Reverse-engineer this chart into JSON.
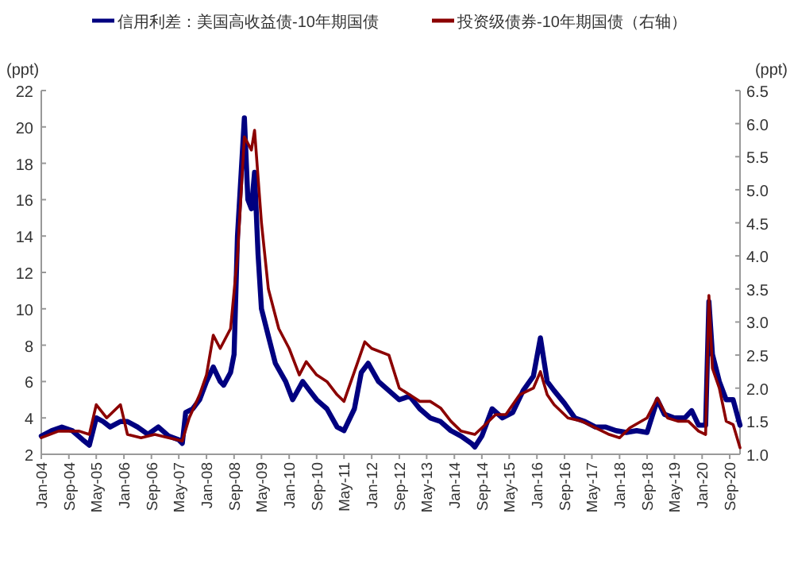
{
  "chart_data": {
    "type": "line",
    "ylabel": "(ppt)",
    "y2label": "(ppt)",
    "legend": "top",
    "grid": false,
    "line_style": "solid",
    "xlim": [
      "2004-01",
      "2020-12"
    ],
    "xticks": [
      {
        "value": "2004-01",
        "label": "Jan-04"
      },
      {
        "value": "2004-09",
        "label": "Sep-04"
      },
      {
        "value": "2005-05",
        "label": "May-05"
      },
      {
        "value": "2006-01",
        "label": "Jan-06"
      },
      {
        "value": "2006-09",
        "label": "Sep-06"
      },
      {
        "value": "2007-05",
        "label": "May-07"
      },
      {
        "value": "2008-01",
        "label": "Jan-08"
      },
      {
        "value": "2008-09",
        "label": "Sep-08"
      },
      {
        "value": "2009-05",
        "label": "May-09"
      },
      {
        "value": "2010-01",
        "label": "Jan-10"
      },
      {
        "value": "2010-09",
        "label": "Sep-10"
      },
      {
        "value": "2011-05",
        "label": "May-11"
      },
      {
        "value": "2012-01",
        "label": "Jan-12"
      },
      {
        "value": "2012-09",
        "label": "Sep-12"
      },
      {
        "value": "2013-05",
        "label": "May-13"
      },
      {
        "value": "2014-01",
        "label": "Jan-14"
      },
      {
        "value": "2014-09",
        "label": "Sep-14"
      },
      {
        "value": "2015-05",
        "label": "May-15"
      },
      {
        "value": "2016-01",
        "label": "Jan-16"
      },
      {
        "value": "2016-09",
        "label": "Sep-16"
      },
      {
        "value": "2017-05",
        "label": "May-17"
      },
      {
        "value": "2018-01",
        "label": "Jan-18"
      },
      {
        "value": "2018-09",
        "label": "Sep-18"
      },
      {
        "value": "2019-05",
        "label": "May-19"
      },
      {
        "value": "2020-01",
        "label": "Jan-20"
      },
      {
        "value": "2020-09",
        "label": "Sep-20"
      }
    ],
    "ylim": [
      2,
      22
    ],
    "yticks": [
      2,
      4,
      6,
      8,
      10,
      12,
      14,
      16,
      18,
      20,
      22
    ],
    "y2lim": [
      1.0,
      6.5
    ],
    "y2ticks": [
      {
        "value": 1,
        "label": "1.0"
      },
      {
        "value": 1.5,
        "label": "1.5"
      },
      {
        "value": 2,
        "label": "2.0"
      },
      {
        "value": 2.5,
        "label": "2.5"
      },
      {
        "value": 3,
        "label": "3.0"
      },
      {
        "value": 3.5,
        "label": "3.5"
      },
      {
        "value": 4,
        "label": "4.0"
      },
      {
        "value": 4.5,
        "label": "4.5"
      },
      {
        "value": 5,
        "label": "5.0"
      },
      {
        "value": 5.5,
        "label": "5.5"
      },
      {
        "value": 6,
        "label": "6.0"
      },
      {
        "value": 6.5,
        "label": "6.5"
      }
    ],
    "series": [
      {
        "name": "信用利差：美国高收益债-10年期国债",
        "color": "#000080",
        "x": [
          "2004-01",
          "2004-04",
          "2004-07",
          "2004-10",
          "2005-01",
          "2005-03",
          "2005-05",
          "2005-07",
          "2005-09",
          "2005-12",
          "2006-02",
          "2006-05",
          "2006-08",
          "2006-11",
          "2007-02",
          "2007-05",
          "2007-06",
          "2007-07",
          "2007-09",
          "2007-11",
          "2008-01",
          "2008-03",
          "2008-05",
          "2008-06",
          "2008-08",
          "2008-09",
          "2008-10",
          "2008-12",
          "2009-01",
          "2009-02",
          "2009-03",
          "2009-04",
          "2009-05",
          "2009-07",
          "2009-09",
          "2009-12",
          "2010-02",
          "2010-05",
          "2010-07",
          "2010-09",
          "2010-12",
          "2011-03",
          "2011-05",
          "2011-08",
          "2011-10",
          "2011-12",
          "2012-03",
          "2012-06",
          "2012-09",
          "2012-12",
          "2013-03",
          "2013-06",
          "2013-09",
          "2013-12",
          "2014-03",
          "2014-06",
          "2014-07",
          "2014-09",
          "2014-12",
          "2015-03",
          "2015-06",
          "2015-09",
          "2015-12",
          "2016-02",
          "2016-04",
          "2016-06",
          "2016-09",
          "2016-12",
          "2017-03",
          "2017-06",
          "2017-09",
          "2017-12",
          "2018-03",
          "2018-06",
          "2018-09",
          "2018-12",
          "2019-02",
          "2019-05",
          "2019-08",
          "2019-10",
          "2019-12",
          "2020-02",
          "2020-03",
          "2020-04",
          "2020-06",
          "2020-08",
          "2020-10",
          "2020-12"
        ],
        "values": [
          3.0,
          3.3,
          3.5,
          3.3,
          2.8,
          2.5,
          4.0,
          3.8,
          3.5,
          3.8,
          3.8,
          3.5,
          3.1,
          3.5,
          3.0,
          2.8,
          2.6,
          4.3,
          4.5,
          5.0,
          6.0,
          6.8,
          6.0,
          5.8,
          6.5,
          7.5,
          14,
          20.5,
          16,
          15.5,
          17.5,
          13,
          10,
          8.5,
          7.0,
          6.0,
          5.0,
          6.0,
          5.5,
          5.0,
          4.5,
          3.5,
          3.3,
          4.5,
          6.5,
          7.0,
          6.0,
          5.5,
          5.0,
          5.2,
          4.5,
          4.0,
          3.8,
          3.3,
          3.0,
          2.6,
          2.4,
          3.0,
          4.5,
          4.0,
          4.3,
          5.5,
          6.3,
          8.4,
          6.0,
          5.5,
          4.8,
          4.0,
          3.8,
          3.5,
          3.5,
          3.3,
          3.2,
          3.3,
          3.2,
          5.0,
          4.2,
          4.0,
          4.0,
          4.4,
          3.6,
          3.6,
          10.4,
          7.5,
          6.0,
          5.0,
          5.0,
          3.6
        ]
      },
      {
        "name": "投资级债券-10年期国债（右轴）",
        "color": "#8b0000",
        "axis": "y2",
        "x": [
          "2004-01",
          "2004-06",
          "2004-12",
          "2005-03",
          "2005-05",
          "2005-08",
          "2005-12",
          "2006-02",
          "2006-06",
          "2006-10",
          "2007-02",
          "2007-06",
          "2007-08",
          "2007-11",
          "2008-01",
          "2008-03",
          "2008-05",
          "2008-08",
          "2008-10",
          "2008-12",
          "2009-02",
          "2009-03",
          "2009-05",
          "2009-07",
          "2009-10",
          "2010-01",
          "2010-04",
          "2010-06",
          "2010-09",
          "2010-12",
          "2011-03",
          "2011-05",
          "2011-09",
          "2011-11",
          "2012-01",
          "2012-06",
          "2012-09",
          "2012-12",
          "2013-03",
          "2013-06",
          "2013-09",
          "2013-12",
          "2014-03",
          "2014-07",
          "2014-09",
          "2015-01",
          "2015-04",
          "2015-08",
          "2015-12",
          "2016-02",
          "2016-04",
          "2016-06",
          "2016-10",
          "2017-02",
          "2017-06",
          "2017-10",
          "2018-01",
          "2018-04",
          "2018-09",
          "2018-12",
          "2019-03",
          "2019-06",
          "2019-09",
          "2019-12",
          "2020-02",
          "2020-03",
          "2020-04",
          "2020-06",
          "2020-08",
          "2020-10",
          "2020-12"
        ],
        "values": [
          1.25,
          1.35,
          1.35,
          1.3,
          1.75,
          1.55,
          1.75,
          1.3,
          1.25,
          1.3,
          1.25,
          1.2,
          1.55,
          1.9,
          2.2,
          2.8,
          2.6,
          2.9,
          4.0,
          5.8,
          5.6,
          5.9,
          4.5,
          3.5,
          2.9,
          2.6,
          2.2,
          2.4,
          2.2,
          2.1,
          1.9,
          1.8,
          2.4,
          2.7,
          2.6,
          2.5,
          2.0,
          1.9,
          1.8,
          1.8,
          1.7,
          1.5,
          1.35,
          1.3,
          1.4,
          1.6,
          1.6,
          1.9,
          2.0,
          2.25,
          1.9,
          1.75,
          1.55,
          1.5,
          1.4,
          1.3,
          1.25,
          1.4,
          1.55,
          1.85,
          1.55,
          1.5,
          1.5,
          1.35,
          1.3,
          3.4,
          2.3,
          2.0,
          1.5,
          1.45,
          1.1
        ]
      }
    ]
  }
}
